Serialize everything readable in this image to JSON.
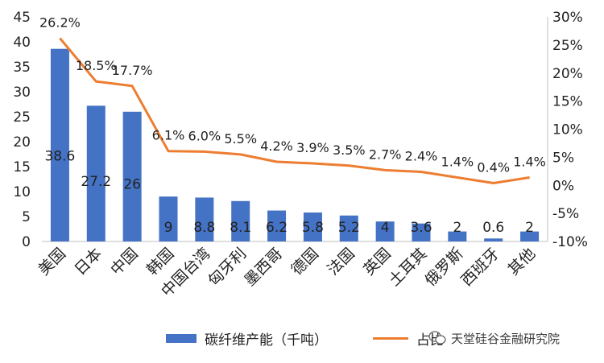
{
  "chart_data": {
    "type": "bar",
    "categories": [
      "美国",
      "日本",
      "中国",
      "韩国",
      "中国台湾",
      "匈牙利",
      "墨西哥",
      "德国",
      "法国",
      "英国",
      "土耳其",
      "俄罗斯",
      "西班牙",
      "其他"
    ],
    "series": [
      {
        "name": "碳纤维产能（千吨）",
        "type": "bar",
        "axis": "left",
        "values": [
          38.6,
          27.2,
          26,
          9,
          8.8,
          8.1,
          6.2,
          5.8,
          5.2,
          4,
          3.6,
          2,
          0.6,
          2
        ],
        "labels": [
          "38.6",
          "27.2",
          "26",
          "9",
          "8.8",
          "8.1",
          "6.2",
          "5.8",
          "5.2",
          "4",
          "3.6",
          "2",
          "0.6",
          "2"
        ]
      },
      {
        "name": "占比",
        "type": "line",
        "axis": "right",
        "values": [
          26.2,
          18.5,
          17.7,
          6.1,
          6.0,
          5.5,
          4.2,
          3.9,
          3.5,
          2.7,
          2.4,
          1.4,
          0.4,
          1.4
        ],
        "labels": [
          "26.2%",
          "18.5%",
          "17.7%",
          "6.1%",
          "6.0%",
          "5.5%",
          "4.2%",
          "3.9%",
          "3.5%",
          "2.7%",
          "2.4%",
          "1.4%",
          "0.4%",
          "1.4%"
        ]
      }
    ],
    "y_left": {
      "min": 0,
      "max": 45,
      "ticks": [
        "0",
        "5",
        "10",
        "15",
        "20",
        "25",
        "30",
        "35",
        "40",
        "45"
      ]
    },
    "y_right": {
      "min": -10,
      "max": 30,
      "ticks": [
        "-10%",
        "-5%",
        "0%",
        "5%",
        "10%",
        "15%",
        "20%",
        "25%",
        "30%"
      ]
    },
    "grid": false,
    "legend": "bottom",
    "colors": {
      "bar": "#4472C4",
      "line": "#ED7D31",
      "text": "#222222",
      "axis": "#bfbfbf"
    }
  },
  "legend": {
    "bar_label": "碳纤维产能（千吨）",
    "line_label": "占比"
  },
  "watermark": {
    "text": "天堂硅谷金融研究院",
    "icon": "wechat-icon"
  }
}
